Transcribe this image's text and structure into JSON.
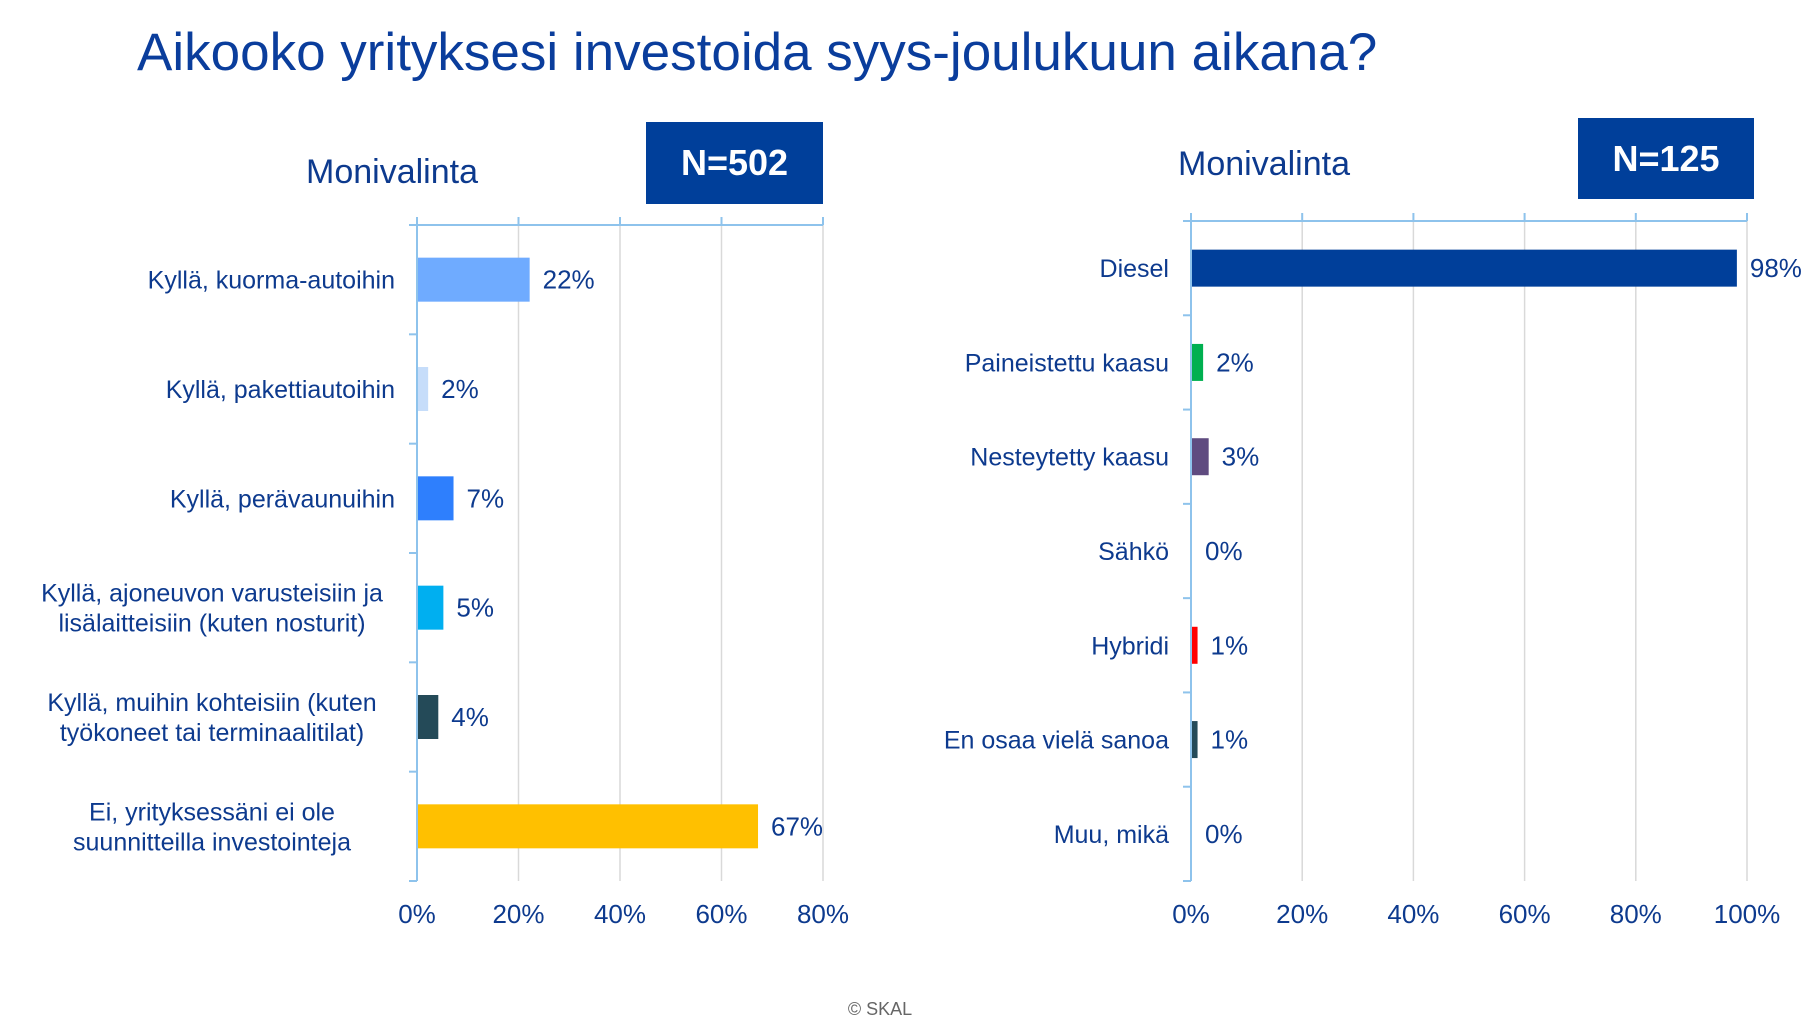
{
  "title": "Aikooko yrityksesi investoida syys-joulukuun aikana?",
  "footer": "© SKAL",
  "chart_data": [
    {
      "type": "bar",
      "orientation": "horizontal",
      "subtitle": "Monivalinta",
      "n_label": "N=502",
      "categories": [
        "Kyllä, kuorma-autoihin",
        "Kyllä, pakettiautoihin",
        "Kyllä, perävaunuihin",
        "Kyllä, ajoneuvon varusteisiin ja|lisälaitteisiin (kuten nosturit)",
        "Kyllä, muihin kohteisiin (kuten|työkoneet tai terminaalitilat)",
        "Ei, yrityksessäni ei ole|suunnitteilla investointeja"
      ],
      "values": [
        22,
        2,
        7,
        5,
        4,
        67
      ],
      "data_labels": [
        "22%",
        "2%",
        "7%",
        "5%",
        "4%",
        "67%"
      ],
      "colors": [
        "#6fabff",
        "#c6ddfa",
        "#2e7ffd",
        "#00aff0",
        "#244a58",
        "#ffc000"
      ],
      "xlim": [
        0,
        80
      ],
      "ticks": [
        "0%",
        "20%",
        "40%",
        "60%",
        "80%"
      ],
      "grid": true
    },
    {
      "type": "bar",
      "orientation": "horizontal",
      "subtitle": "Monivalinta",
      "n_label": "N=125",
      "categories": [
        "Diesel",
        "Paineistettu kaasu",
        "Nesteytetty kaasu",
        "Sähkö",
        "Hybridi",
        "En osaa vielä sanoa",
        "Muu, mikä"
      ],
      "values": [
        98,
        2,
        3,
        0,
        1,
        1,
        0
      ],
      "data_labels": [
        "98%",
        "2%",
        "3%",
        "0%",
        "1%",
        "1%",
        "0%"
      ],
      "colors": [
        "#003f9a",
        "#00b050",
        "#5f4b80",
        "#5f4b80",
        "#ff0000",
        "#244a58",
        "#244a58"
      ],
      "xlim": [
        0,
        100
      ],
      "ticks": [
        "0%",
        "20%",
        "40%",
        "60%",
        "80%",
        "100%"
      ],
      "grid": true
    }
  ]
}
